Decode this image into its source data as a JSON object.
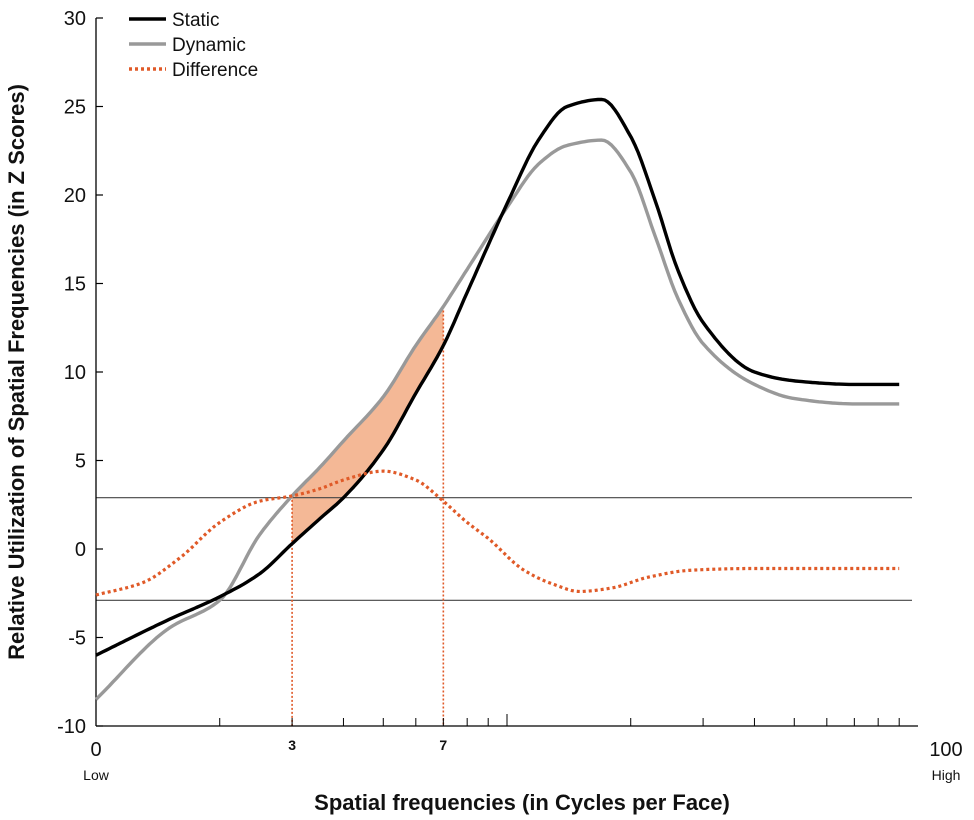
{
  "chart_data": {
    "type": "line",
    "xlabel": "Spatial frequencies (in Cycles per Face)",
    "ylabel": "Relative Utilization of Spatial Frequencies (in Z Scores)",
    "ylim": [
      -10,
      30
    ],
    "yticks": [
      "30",
      "25",
      "20",
      "15",
      "10",
      "5",
      "0",
      "-5",
      "-10"
    ],
    "xscale": "log",
    "xlim": [
      1,
      100
    ],
    "x_tick_labels": [
      {
        "value": 1,
        "label": "0"
      },
      {
        "value": 3,
        "label": "3"
      },
      {
        "value": 7,
        "label": "7"
      },
      {
        "value": 100,
        "label": "100"
      }
    ],
    "x_end_labels": {
      "low": "Low",
      "high": "High"
    },
    "thresholds": [
      2.9,
      -2.9
    ],
    "highlight_range": [
      3,
      7
    ],
    "legend": [
      {
        "name": "Static",
        "color": "#000000",
        "style": "solid"
      },
      {
        "name": "Dynamic",
        "color": "#999999",
        "style": "solid"
      },
      {
        "name": "Difference",
        "color": "#e05a28",
        "style": "dotted"
      }
    ],
    "shade_color": "#f4b896",
    "series": [
      {
        "name": "Static",
        "x": [
          1,
          1.5,
          2,
          2.5,
          3,
          3.5,
          4,
          5,
          6,
          7,
          8,
          10,
          12,
          14,
          17,
          20,
          23,
          26,
          30,
          40,
          50,
          70,
          90
        ],
        "y": [
          -6,
          -4,
          -2.7,
          -1.4,
          0.3,
          1.7,
          2.9,
          5.6,
          8.8,
          11.5,
          14.5,
          19.5,
          23.2,
          25,
          25.4,
          23.3,
          19.6,
          15.8,
          12.8,
          10,
          9.5,
          9.3,
          9.3
        ]
      },
      {
        "name": "Dynamic",
        "x": [
          1,
          1.5,
          2,
          2.5,
          3,
          3.5,
          4,
          5,
          6,
          7,
          8,
          10,
          12,
          14,
          17,
          20,
          23,
          26,
          30,
          40,
          50,
          70,
          90
        ],
        "y": [
          -8.5,
          -4.5,
          -2.9,
          0.8,
          3,
          4.6,
          6.1,
          8.6,
          11.5,
          13.7,
          15.8,
          19.3,
          21.8,
          22.8,
          23.1,
          21.3,
          17.6,
          14.2,
          11.6,
          9.3,
          8.5,
          8.2,
          8.2
        ]
      },
      {
        "name": "Difference",
        "x": [
          1,
          1.3,
          1.6,
          2,
          2.5,
          3,
          3.5,
          4,
          5,
          6,
          7,
          8,
          9,
          11,
          13,
          15,
          18,
          22,
          28,
          40,
          60,
          90
        ],
        "y": [
          -2.6,
          -1.9,
          -0.5,
          1.5,
          2.7,
          3.0,
          3.4,
          3.9,
          4.4,
          3.9,
          2.7,
          1.5,
          0.6,
          -1.2,
          -2,
          -2.4,
          -2.2,
          -1.6,
          -1.2,
          -1.1,
          -1.1,
          -1.1
        ]
      }
    ]
  }
}
